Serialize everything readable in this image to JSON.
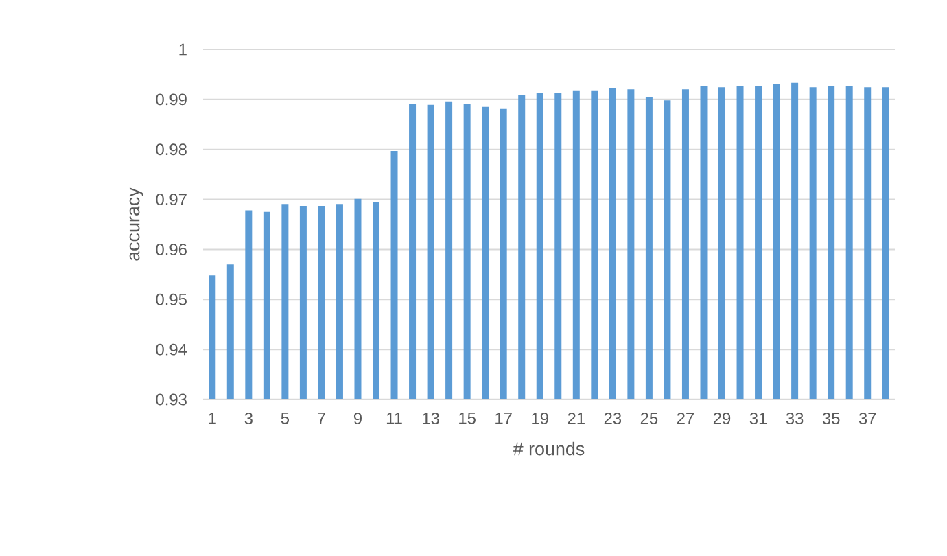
{
  "chart_data": {
    "type": "bar",
    "xlabel": "# rounds",
    "ylabel": "accuracy",
    "categories": [
      "1",
      null,
      "3",
      null,
      "5",
      null,
      "7",
      null,
      "9",
      null,
      "11",
      null,
      "13",
      null,
      "15",
      null,
      "17",
      null,
      "19",
      null,
      "21",
      null,
      "23",
      null,
      "25",
      null,
      "27",
      null,
      "29",
      null,
      "31",
      null,
      "33",
      null,
      "35",
      null,
      "37",
      null
    ],
    "values": [
      0.9548,
      0.957,
      0.9678,
      0.9675,
      0.9691,
      0.9687,
      0.9687,
      0.9691,
      0.9701,
      0.9694,
      0.9797,
      0.9891,
      0.9889,
      0.9896,
      0.9891,
      0.9885,
      0.9881,
      0.9908,
      0.9913,
      0.9913,
      0.9918,
      0.9918,
      0.9923,
      0.992,
      0.9904,
      0.9898,
      0.992,
      0.9927,
      0.9924,
      0.9927,
      0.9927,
      0.9931,
      0.9933,
      0.9924,
      0.9927,
      0.9927,
      0.9924,
      0.9924
    ],
    "color": "#5b9bd5",
    "ylim": [
      0.93,
      1
    ],
    "yticks": [
      0.93,
      0.94,
      0.95,
      0.96,
      0.97,
      0.98,
      0.99,
      1
    ],
    "grid": "y"
  }
}
